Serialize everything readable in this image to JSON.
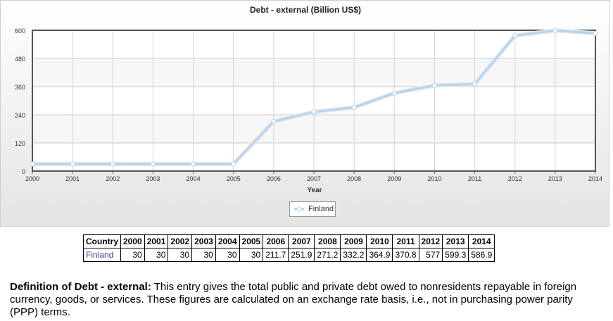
{
  "chart_data": {
    "type": "line",
    "title": "Debt - external (Billion US$)",
    "xlabel": "Year",
    "ylabel": "",
    "x": [
      "2000",
      "2001",
      "2002",
      "2003",
      "2004",
      "2005",
      "2006",
      "2007",
      "2008",
      "2009",
      "2010",
      "2011",
      "2012",
      "2013",
      "2014"
    ],
    "series": [
      {
        "name": "Finland",
        "values": [
          30,
          30,
          30,
          30,
          30,
          30,
          211.7,
          251.9,
          271.2,
          332.2,
          364.9,
          370.8,
          577,
          599.3,
          586.9
        ]
      }
    ],
    "yticks": [
      0,
      120,
      240,
      360,
      480,
      600
    ],
    "ylim": [
      0,
      600
    ],
    "grid": true,
    "legend_position": "bottom-center",
    "line_color": "#b9d3ea",
    "marker_color": "#ffffff"
  },
  "table": {
    "header_label": "Country",
    "years": [
      "2000",
      "2001",
      "2002",
      "2003",
      "2004",
      "2005",
      "2006",
      "2007",
      "2008",
      "2009",
      "2010",
      "2011",
      "2012",
      "2013",
      "2014"
    ],
    "rows": [
      {
        "country": "Finland",
        "values": [
          "30",
          "30",
          "30",
          "30",
          "30",
          "30",
          "211.7",
          "251.9",
          "271.2",
          "332.2",
          "364.9",
          "370.8",
          "577",
          "599.3",
          "586.9"
        ]
      }
    ]
  },
  "definition": {
    "label": "Definition of Debt - external:",
    "text": " This entry gives the total public and private debt owed to nonresidents repayable in foreign currency, goods, or services. These figures are calculated on an exchange rate basis, i.e., not in purchasing power parity (PPP) terms."
  }
}
